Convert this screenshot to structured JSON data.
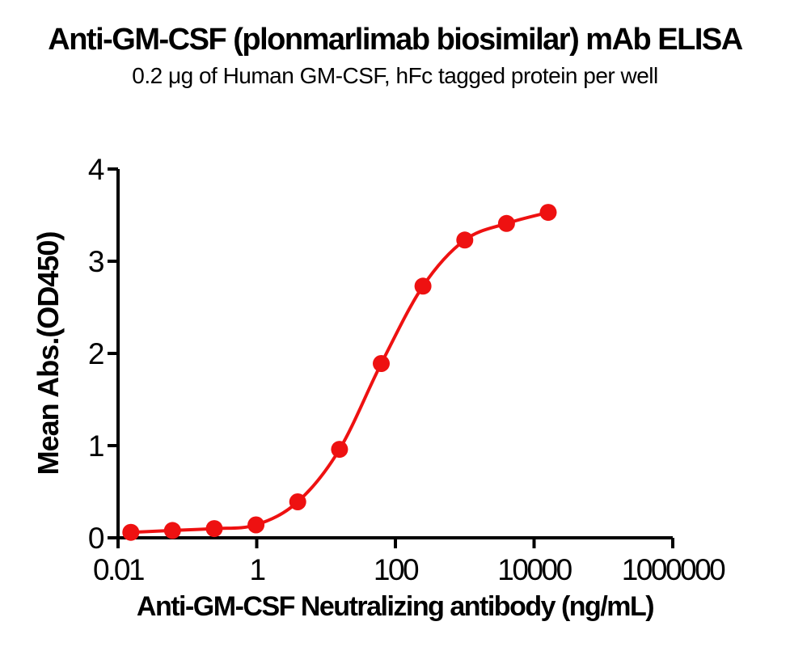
{
  "header": {
    "title": "Anti-GM-CSF (plonmarlimab biosimilar) mAb ELISA",
    "subtitle": "0.2 μg of Human GM-CSF, hFc tagged protein per well"
  },
  "chart_data": {
    "type": "scatter",
    "title": "Anti-GM-CSF (plonmarlimab biosimilar) mAb ELISA",
    "subtitle": "0.2 μg of Human GM-CSF, hFc tagged protein per well",
    "xlabel": "Anti-GM-CSF Neutralizing antibody (ng/mL)",
    "ylabel": "Mean Abs.(OD450)",
    "x_scale": "log",
    "xlim": [
      0.01,
      1000000
    ],
    "ylim": [
      0,
      4
    ],
    "x_tick_values": [
      0.01,
      1,
      100,
      10000,
      1000000
    ],
    "x_tick_labels": [
      "0.01",
      "1",
      "100",
      "10000",
      "1000000"
    ],
    "y_tick_values": [
      0,
      1,
      2,
      3,
      4
    ],
    "y_tick_labels": [
      "0",
      "1",
      "2",
      "3",
      "4"
    ],
    "grid": false,
    "legend": "none",
    "curve_style": "smooth-sigmoid-fit",
    "x": [
      0.0153,
      0.061,
      0.244,
      0.977,
      3.906,
      15.625,
      62.5,
      250,
      1000,
      4000,
      16000
    ],
    "y": [
      0.06,
      0.08,
      0.1,
      0.14,
      0.39,
      0.96,
      1.89,
      2.73,
      3.23,
      3.41,
      3.53
    ],
    "colors": {
      "series": "#EE1111",
      "axis": "#000000",
      "text": "#000000",
      "background": "#FFFFFF"
    }
  }
}
